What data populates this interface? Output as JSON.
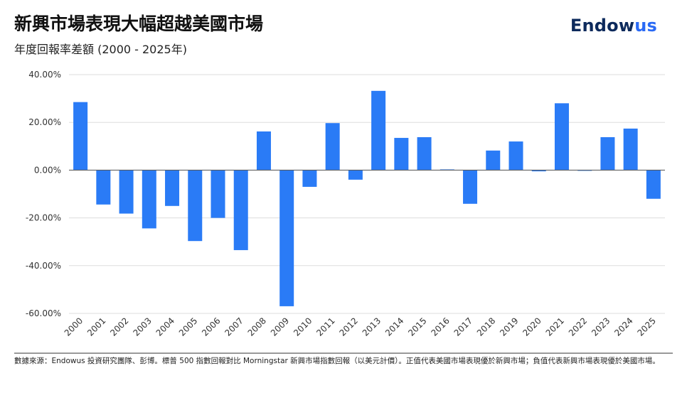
{
  "header": {
    "title": "新興市場表現大幅超越美國市場",
    "subtitle": "年度回報率差額 (2000 - 2025年)",
    "logo": "Endowus"
  },
  "chart_data": {
    "type": "bar",
    "title": "新興市場表現大幅超越美國市場",
    "subtitle": "年度回報率差額 (2000 - 2025年)",
    "xlabel": "",
    "ylabel": "",
    "ylim": [
      -60,
      40
    ],
    "yticks": [
      40,
      20,
      0,
      -20,
      -40,
      -60
    ],
    "ytick_labels": [
      "40.00%",
      "20.00%",
      "0.00%",
      "-20.00%",
      "-40.00%",
      "-60.00%"
    ],
    "grid": true,
    "color": "#2a7bf6",
    "categories": [
      "2000",
      "2001",
      "2002",
      "2003",
      "2004",
      "2005",
      "2006",
      "2007",
      "2008",
      "2009",
      "2010",
      "2011",
      "2012",
      "2013",
      "2014",
      "2015",
      "2016",
      "2017",
      "2018",
      "2019",
      "2020",
      "2021",
      "2022",
      "2023",
      "2024",
      "2025"
    ],
    "values": [
      28.5,
      -14.4,
      -18.2,
      -24.4,
      -15.0,
      -29.7,
      -20.0,
      -33.5,
      16.2,
      -57.0,
      -7.0,
      19.7,
      -4.0,
      33.2,
      13.5,
      13.8,
      0.3,
      -14.1,
      8.2,
      12.0,
      -0.5,
      28.0,
      -0.2,
      13.8,
      17.4,
      -12.0
    ]
  },
  "footer": {
    "note": "數據來源：Endowus 投資研究團隊、彭博。標普 500 指數回報對比 Morningstar 新興市場指數回報（以美元計價）。正值代表美國市場表現優於新興市場；負值代表新興市場表現優於美國市場。"
  }
}
